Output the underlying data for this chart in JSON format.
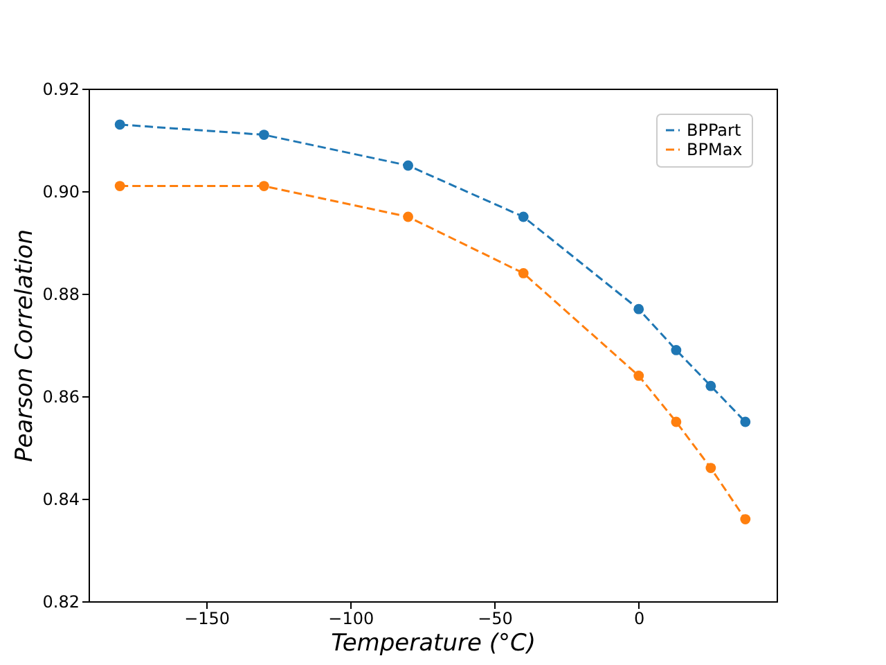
{
  "chart_data": {
    "type": "line",
    "xlabel": "Temperature (°C)",
    "ylabel": "Pearson Correlation",
    "x": [
      -180,
      -130,
      -80,
      -40,
      0,
      13,
      25,
      37
    ],
    "series": [
      {
        "name": "BPPart",
        "color": "#1f77b4",
        "values": [
          0.913,
          0.911,
          0.905,
          0.895,
          0.877,
          0.869,
          0.862,
          0.855
        ]
      },
      {
        "name": "BPMax",
        "color": "#ff7f0e",
        "values": [
          0.901,
          0.901,
          0.895,
          0.884,
          0.864,
          0.855,
          0.846,
          0.836
        ]
      }
    ],
    "xlim": [
      -190.85,
      47.85
    ],
    "xticks": [
      -150,
      -100,
      -50,
      0
    ],
    "ylim": [
      0.82,
      0.92
    ],
    "yticks": [
      0.82,
      0.84,
      0.86,
      0.88,
      {
        "value": 0.9,
        "label": "0.90"
      },
      0.92
    ],
    "marker": "circle",
    "line_style": "dashed",
    "legend": "top right",
    "grid": false
  }
}
